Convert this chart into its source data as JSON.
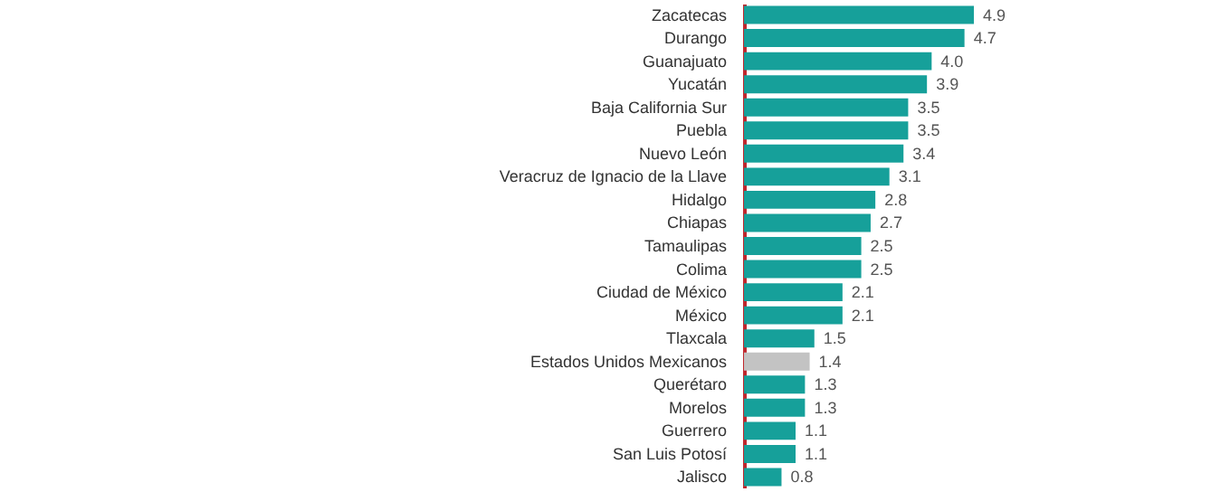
{
  "chart_data": {
    "type": "bar",
    "orientation": "horizontal",
    "value_labels": [
      "4.9",
      "4.7",
      "4.0",
      "3.9",
      "3.5",
      "3.5",
      "3.4",
      "3.1",
      "2.8",
      "2.7",
      "2.5",
      "2.5",
      "2.1",
      "2.1",
      "1.5",
      "1.4",
      "1.3",
      "1.3",
      "1.1",
      "1.1",
      "0.8"
    ],
    "categories": [
      "Zacatecas",
      "Durango",
      "Guanajuato",
      "Yucatán",
      "Baja California Sur",
      "Puebla",
      "Nuevo León",
      "Veracruz de Ignacio de la Llave",
      "Hidalgo",
      "Chiapas",
      "Tamaulipas",
      "Colima",
      "Ciudad de México",
      "México",
      "Tlaxcala",
      "Estados Unidos Mexicanos",
      "Querétaro",
      "Morelos",
      "Guerrero",
      "San Luis Potosí",
      "Jalisco"
    ],
    "values": [
      4.9,
      4.7,
      4.0,
      3.9,
      3.5,
      3.5,
      3.4,
      3.1,
      2.8,
      2.7,
      2.5,
      2.5,
      2.1,
      2.1,
      1.5,
      1.4,
      1.3,
      1.3,
      1.1,
      1.1,
      0.8
    ],
    "colors": [
      "#16a09a",
      "#16a09a",
      "#16a09a",
      "#16a09a",
      "#16a09a",
      "#16a09a",
      "#16a09a",
      "#16a09a",
      "#16a09a",
      "#16a09a",
      "#16a09a",
      "#16a09a",
      "#16a09a",
      "#16a09a",
      "#16a09a",
      "#c3c3c3",
      "#16a09a",
      "#16a09a",
      "#16a09a",
      "#16a09a",
      "#16a09a"
    ]
  }
}
